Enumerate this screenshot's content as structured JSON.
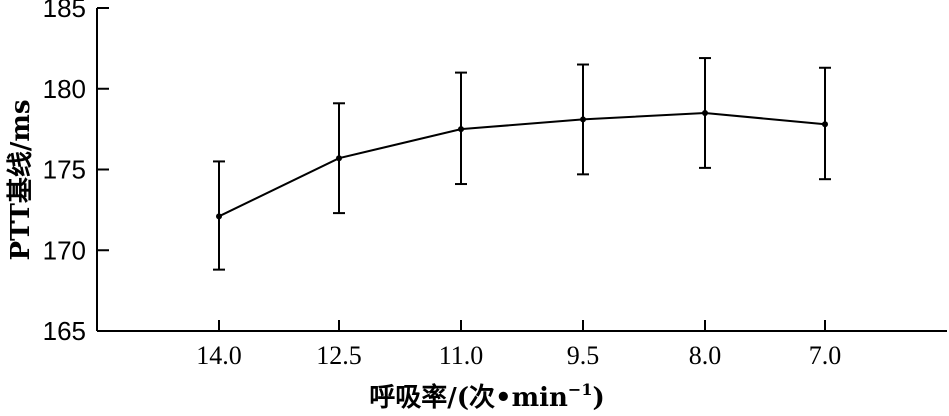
{
  "chart_data": {
    "type": "line",
    "title": "",
    "xlabel": "呼吸率/(次•min",
    "xlabel_sup": "−1",
    "xlabel_suffix": ")",
    "ylabel": "PTT基线/ms",
    "categories": [
      "14.0",
      "12.5",
      "11.0",
      "9.5",
      "8.0",
      "7.0"
    ],
    "series": [
      {
        "values": [
          172.1,
          175.7,
          177.5,
          178.1,
          178.5,
          177.8
        ],
        "err_upper": [
          175.5,
          179.1,
          181.0,
          181.5,
          181.9,
          181.3
        ],
        "err_lower": [
          168.8,
          172.3,
          174.1,
          174.7,
          175.1,
          174.4
        ]
      }
    ],
    "ylim": [
      165,
      185
    ],
    "yticks": [
      "165",
      "170",
      "175",
      "180",
      "185"
    ],
    "grid": false,
    "legend": "none",
    "color": "#000000"
  }
}
